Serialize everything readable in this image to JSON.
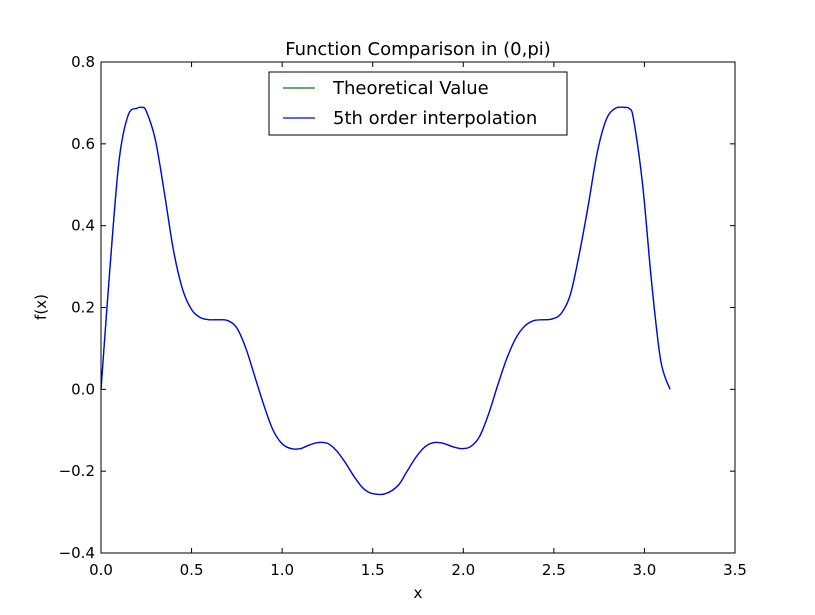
{
  "chart_data": {
    "type": "line",
    "title": "Function Comparison in (0,pi)",
    "xlabel": "x",
    "ylabel": "f(x)",
    "xlim": [
      0.0,
      3.5
    ],
    "ylim": [
      -0.4,
      0.8
    ],
    "xticks": [
      0.0,
      0.5,
      1.0,
      1.5,
      2.0,
      2.5,
      3.0,
      3.5
    ],
    "xtick_labels": [
      "0.0",
      "0.5",
      "1.0",
      "1.5",
      "2.0",
      "2.5",
      "3.0",
      "3.5"
    ],
    "yticks": [
      -0.4,
      -0.2,
      0.0,
      0.2,
      0.4,
      0.6,
      0.8
    ],
    "ytick_labels": [
      "−0.4",
      "−0.2",
      "0.0",
      "0.2",
      "0.4",
      "0.6",
      "0.8"
    ],
    "grid": false,
    "legend_position": "top-center",
    "series": [
      {
        "name": "Theoretical Value",
        "color": "#008000",
        "x": [
          0.0,
          0.05,
          0.1,
          0.15,
          0.2,
          0.225,
          0.25,
          0.3,
          0.35,
          0.4,
          0.45,
          0.5,
          0.55,
          0.6,
          0.65,
          0.7,
          0.75,
          0.8,
          0.85,
          0.9,
          0.95,
          1.0,
          1.05,
          1.1,
          1.15,
          1.2,
          1.25,
          1.3,
          1.35,
          1.4,
          1.45,
          1.5,
          1.5708,
          1.64,
          1.69,
          1.74,
          1.79,
          1.84,
          1.89,
          1.94,
          1.99,
          2.04,
          2.09,
          2.14,
          2.19,
          2.24,
          2.29,
          2.34,
          2.39,
          2.44,
          2.49,
          2.54,
          2.59,
          2.64,
          2.69,
          2.74,
          2.79,
          2.84,
          2.89,
          2.917,
          2.94,
          2.99,
          3.04,
          3.09,
          3.1416
        ],
        "y": [
          0.0,
          0.3,
          0.56,
          0.67,
          0.687,
          0.689,
          0.68,
          0.61,
          0.48,
          0.34,
          0.245,
          0.195,
          0.175,
          0.17,
          0.17,
          0.168,
          0.15,
          0.1,
          0.03,
          -0.04,
          -0.1,
          -0.133,
          -0.145,
          -0.145,
          -0.136,
          -0.13,
          -0.132,
          -0.15,
          -0.18,
          -0.215,
          -0.243,
          -0.255,
          -0.255,
          -0.235,
          -0.2,
          -0.165,
          -0.14,
          -0.13,
          -0.132,
          -0.14,
          -0.145,
          -0.14,
          -0.115,
          -0.06,
          0.01,
          0.075,
          0.125,
          0.155,
          0.168,
          0.17,
          0.172,
          0.185,
          0.23,
          0.33,
          0.45,
          0.58,
          0.66,
          0.687,
          0.689,
          0.686,
          0.66,
          0.5,
          0.26,
          0.07,
          0.0
        ]
      },
      {
        "name": "5th order interpolation",
        "color": "#0000ff",
        "x": [
          0.0,
          0.05,
          0.1,
          0.15,
          0.2,
          0.225,
          0.25,
          0.3,
          0.35,
          0.4,
          0.45,
          0.5,
          0.55,
          0.6,
          0.65,
          0.7,
          0.75,
          0.8,
          0.85,
          0.9,
          0.95,
          1.0,
          1.05,
          1.1,
          1.15,
          1.2,
          1.25,
          1.3,
          1.35,
          1.4,
          1.45,
          1.5,
          1.5708,
          1.64,
          1.69,
          1.74,
          1.79,
          1.84,
          1.89,
          1.94,
          1.99,
          2.04,
          2.09,
          2.14,
          2.19,
          2.24,
          2.29,
          2.34,
          2.39,
          2.44,
          2.49,
          2.54,
          2.59,
          2.64,
          2.69,
          2.74,
          2.79,
          2.84,
          2.89,
          2.917,
          2.94,
          2.99,
          3.04,
          3.09,
          3.1416
        ],
        "y": [
          0.0,
          0.3,
          0.56,
          0.67,
          0.687,
          0.689,
          0.68,
          0.61,
          0.48,
          0.34,
          0.245,
          0.195,
          0.175,
          0.17,
          0.17,
          0.168,
          0.15,
          0.1,
          0.03,
          -0.04,
          -0.1,
          -0.133,
          -0.145,
          -0.145,
          -0.136,
          -0.13,
          -0.132,
          -0.15,
          -0.18,
          -0.215,
          -0.243,
          -0.255,
          -0.255,
          -0.235,
          -0.2,
          -0.165,
          -0.14,
          -0.13,
          -0.132,
          -0.14,
          -0.145,
          -0.14,
          -0.115,
          -0.06,
          0.01,
          0.075,
          0.125,
          0.155,
          0.168,
          0.17,
          0.172,
          0.185,
          0.23,
          0.33,
          0.45,
          0.58,
          0.66,
          0.687,
          0.689,
          0.686,
          0.66,
          0.5,
          0.26,
          0.07,
          0.0
        ]
      }
    ]
  }
}
